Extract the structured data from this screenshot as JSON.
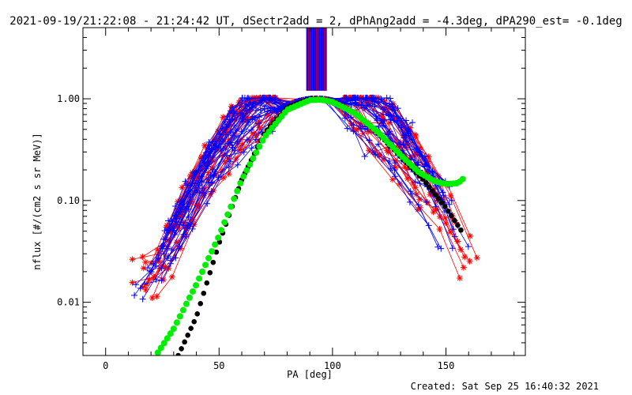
{
  "chart_data": {
    "type": "line",
    "title": "2021-09-19/21:22:08 - 21:24:42 UT, dSectr2add = 2, dPhAng2add = -4.3deg, dPA290_est= -0.1deg",
    "xlabel": "PA [deg]",
    "ylabel": "nflux [#/(cm2 s sr MeV)]",
    "x_scale": "linear",
    "y_scale": "log",
    "xlim": [
      -10,
      185
    ],
    "ylim": [
      0.003,
      5.0
    ],
    "xticks": [
      0,
      50,
      100,
      150
    ],
    "xtick_labels": [
      "0",
      "50",
      "100",
      "150"
    ],
    "yticks": [
      0.01,
      0.1,
      1.0
    ],
    "ytick_labels": [
      "0.01",
      "0.10",
      "1.00"
    ],
    "grid": false,
    "vertical_band": {
      "x_range": [
        88.5,
        97.5
      ],
      "y_range": [
        1.2,
        5.0
      ],
      "color": "#0000ff",
      "edge_color": "#ff0000"
    },
    "series": [
      {
        "name": "red-traces",
        "color": "#ff0000",
        "marker": "asterisk",
        "count": 25
      },
      {
        "name": "blue-traces",
        "color": "#0000ff",
        "marker": "plus",
        "count": 30
      },
      {
        "name": "green-fit",
        "color": "#00ee00",
        "marker": "dot",
        "x": [
          23,
          30,
          40,
          50,
          60,
          70,
          80,
          90,
          95,
          100,
          110,
          120,
          130,
          138,
          145,
          150,
          155,
          157,
          158
        ],
        "y": [
          0.0032,
          0.0055,
          0.015,
          0.045,
          0.16,
          0.42,
          0.78,
          0.97,
          0.98,
          0.93,
          0.72,
          0.47,
          0.28,
          0.19,
          0.155,
          0.145,
          0.148,
          0.158,
          0.17
        ]
      },
      {
        "name": "black-fit",
        "color": "#000000",
        "marker": "dot",
        "x": [
          32,
          40,
          50,
          60,
          70,
          80,
          90,
          100,
          110,
          120,
          130,
          140,
          150,
          155,
          158
        ],
        "y": [
          0.003,
          0.0072,
          0.038,
          0.16,
          0.46,
          0.82,
          1.0,
          0.95,
          0.72,
          0.46,
          0.27,
          0.16,
          0.085,
          0.058,
          0.046
        ]
      }
    ]
  },
  "footer": {
    "created": "Created: Sat Sep 25 16:40:32 2021"
  }
}
